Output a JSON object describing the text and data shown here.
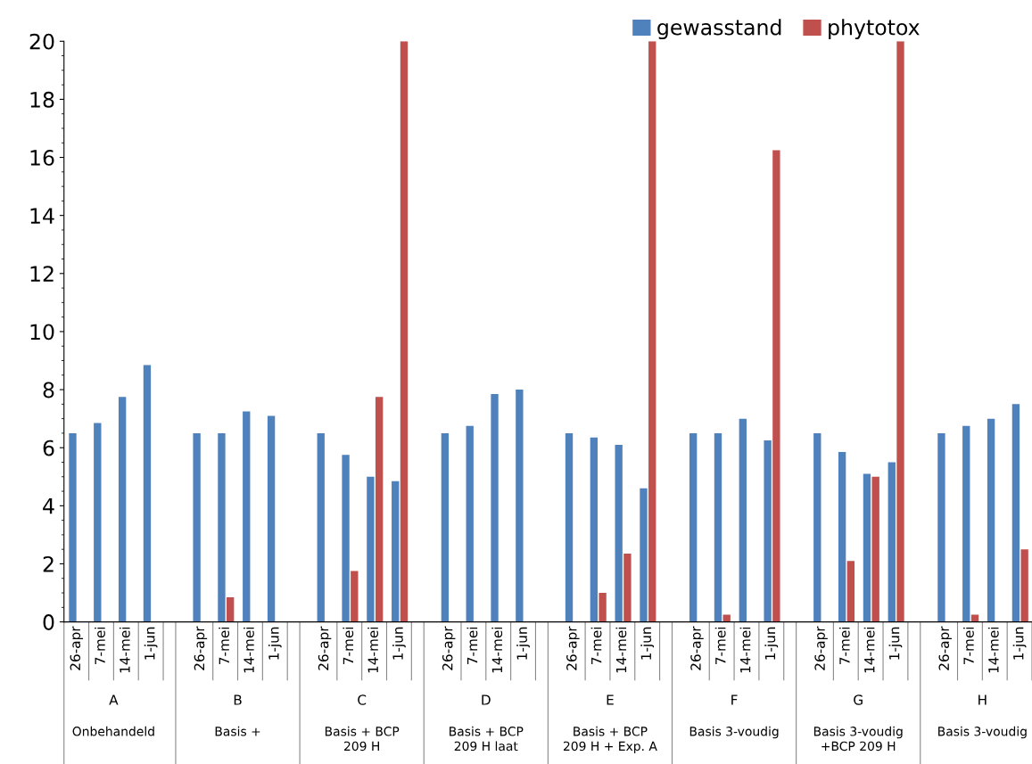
{
  "chart_data": {
    "type": "bar",
    "categories": [
      "26-apr",
      "7-mei",
      "14-mei",
      "1-jun",
      null,
      "26-apr",
      "7-mei",
      "14-mei",
      "1-jun",
      null,
      "26-apr",
      "7-mei",
      "14-mei",
      "1-jun",
      null,
      "26-apr",
      "7-mei",
      "14-mei",
      "1-jun",
      null,
      "26-apr",
      "7-mei",
      "14-mei",
      "1-jun",
      null,
      "26-apr",
      "7-mei",
      "14-mei",
      "1-jun",
      null,
      "26-apr",
      "7-mei",
      "14-mei",
      "1-jun",
      null,
      "26-apr",
      "7-mei",
      "14-mei",
      "1-jun"
    ],
    "series": [
      {
        "name": "gewasstand",
        "color": "#4f81bd",
        "values": [
          6.5,
          6.85,
          7.75,
          8.85,
          null,
          6.5,
          6.5,
          7.25,
          7.1,
          null,
          6.5,
          5.75,
          5.0,
          4.85,
          null,
          6.5,
          6.75,
          7.85,
          8.0,
          null,
          6.5,
          6.35,
          6.1,
          4.6,
          null,
          6.5,
          6.5,
          7.0,
          6.25,
          null,
          6.5,
          5.85,
          5.1,
          5.5,
          null,
          6.5,
          6.75,
          7.0,
          7.5
        ]
      },
      {
        "name": "phytotox",
        "color": "#c0504d",
        "values": [
          null,
          null,
          null,
          null,
          null,
          null,
          0.85,
          null,
          null,
          null,
          null,
          1.75,
          7.75,
          20,
          null,
          null,
          null,
          null,
          null,
          null,
          null,
          1.0,
          2.35,
          20,
          null,
          null,
          0.25,
          null,
          16.25,
          null,
          null,
          2.1,
          5.0,
          20,
          null,
          null,
          0.25,
          null,
          2.5
        ]
      }
    ],
    "annotations": [
      "A",
      "Onbehandeld",
      "B",
      "Basis +",
      "C",
      "Basis + BCP\n209 H",
      "D",
      "Basis + BCP\n209 H laat",
      "E",
      "Basis + BCP\n209 H + Exp. A",
      "F",
      "Basis 3-voudig",
      "G",
      "Basis 3-voudig\n+BCP 209 H",
      "H",
      "Basis 3-voudig"
    ],
    "ylim": [
      0,
      20
    ],
    "yticks": [
      0,
      2,
      4,
      6,
      8,
      10,
      12,
      14,
      16,
      18,
      20
    ],
    "grid": false,
    "legend": "top right"
  }
}
